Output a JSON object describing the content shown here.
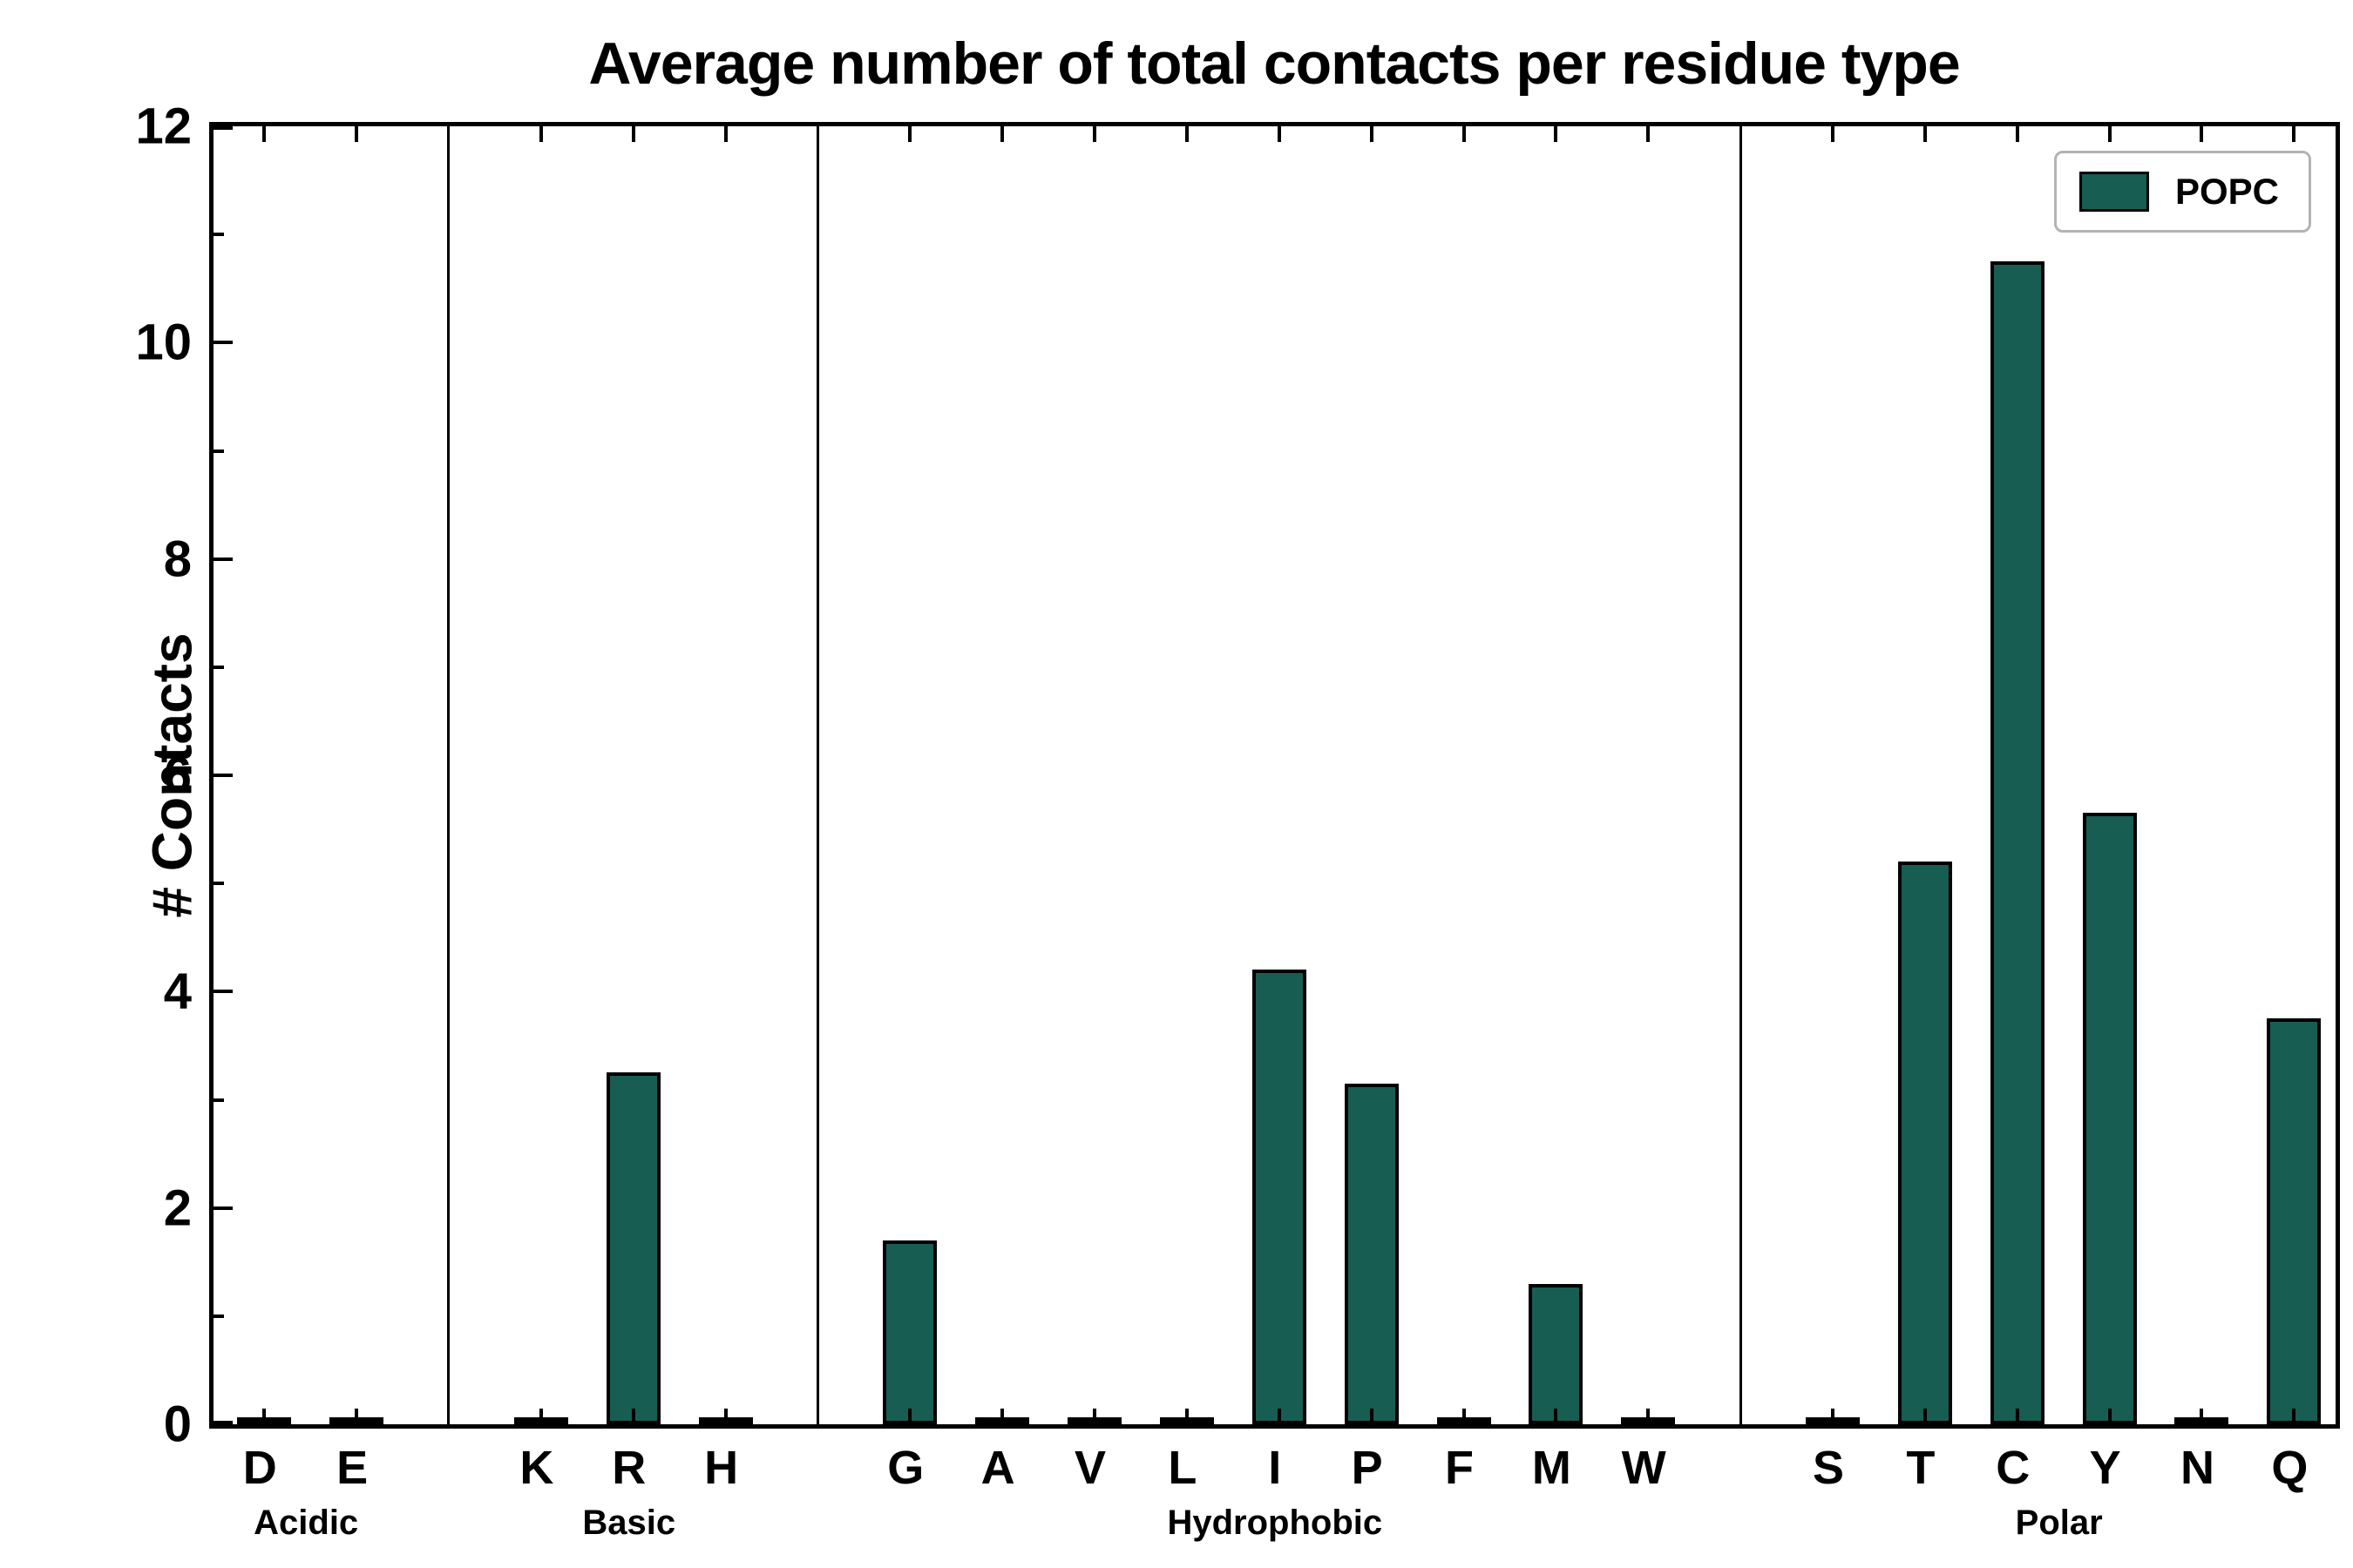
{
  "chart_data": {
    "type": "bar",
    "title": "Average number of total contacts per residue type",
    "ylabel": "# Contacts",
    "xlabel": "",
    "ylim": [
      0,
      12
    ],
    "yticks": [
      0,
      2,
      4,
      6,
      8,
      10,
      12
    ],
    "grid": false,
    "legend_position": "upper right",
    "bar_color": "#175d52",
    "legend": {
      "label": "POPC"
    },
    "groups": [
      {
        "label": "Acidic",
        "categories": [
          "D",
          "E"
        ],
        "values": [
          0,
          0
        ]
      },
      {
        "label": "Basic",
        "categories": [
          "K",
          "R",
          "H"
        ],
        "values": [
          0,
          3.25,
          0
        ]
      },
      {
        "label": "Hydrophobic",
        "categories": [
          "G",
          "A",
          "V",
          "L",
          "I",
          "P",
          "F",
          "M",
          "W"
        ],
        "values": [
          1.7,
          0,
          0,
          0,
          4.2,
          3.15,
          0,
          1.3,
          0
        ]
      },
      {
        "label": "Polar",
        "categories": [
          "S",
          "T",
          "C",
          "Y",
          "N",
          "Q"
        ],
        "values": [
          0,
          5.2,
          10.75,
          5.65,
          0,
          3.75
        ]
      }
    ]
  }
}
